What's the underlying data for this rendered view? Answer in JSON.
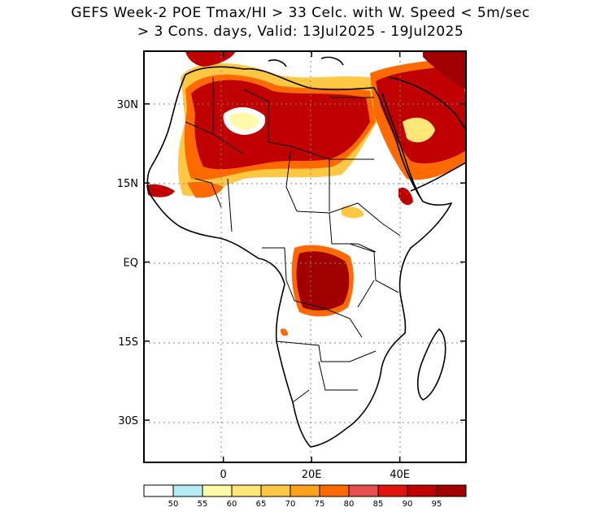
{
  "title_line1": "GEFS Week-2 POE Tmax/HI > 33 Celc. with W. Speed < 5m/sec",
  "title_line2": "> 3 Cons. days, Valid: 13Jul2025 - 19Jul2025",
  "map": {
    "lon_range": [
      -18,
      55
    ],
    "lat_range": [
      -38,
      40
    ],
    "lat_ticks": [
      {
        "value": 30,
        "label": "30N"
      },
      {
        "value": 15,
        "label": "15N"
      },
      {
        "value": 0,
        "label": "EQ"
      },
      {
        "value": -15,
        "label": "15S"
      },
      {
        "value": -30,
        "label": "30S"
      }
    ],
    "lon_ticks": [
      {
        "value": 0,
        "label": "0"
      },
      {
        "value": 20,
        "label": "20E"
      },
      {
        "value": 40,
        "label": "40E"
      }
    ],
    "grid": "dotted"
  },
  "colorbar": {
    "colors": [
      "#ffffff",
      "#b4ecf4",
      "#fffaa8",
      "#ffe678",
      "#ffc844",
      "#ffa21a",
      "#ff6a00",
      "#e85050",
      "#e0140a",
      "#c00000",
      "#a00000"
    ],
    "labels": [
      "50",
      "55",
      "60",
      "65",
      "70",
      "75",
      "80",
      "85",
      "90",
      "95"
    ]
  }
}
